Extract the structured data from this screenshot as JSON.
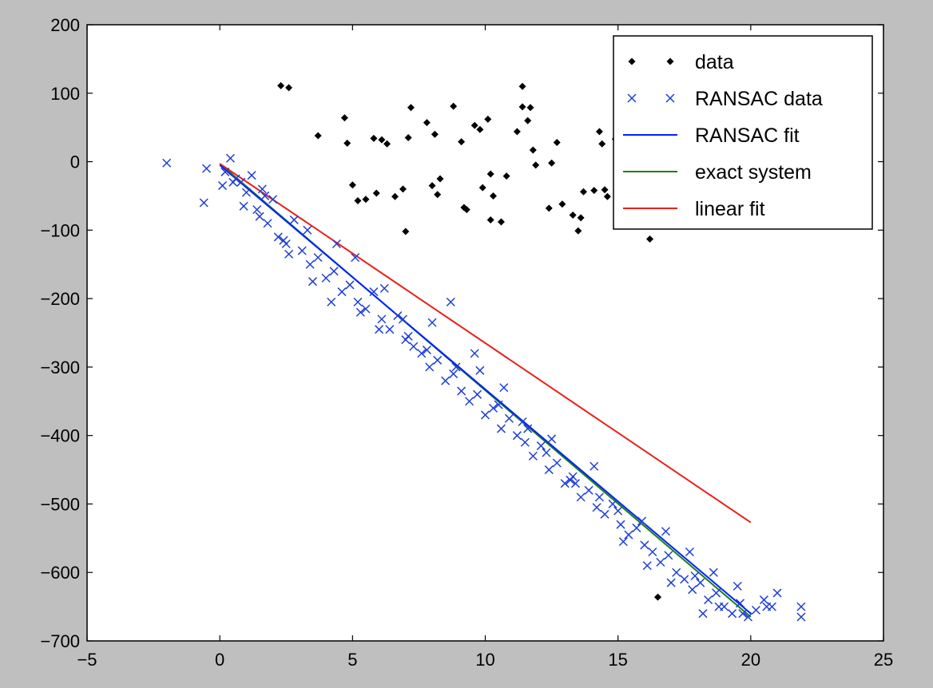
{
  "chart_data": {
    "type": "scatter",
    "title": "",
    "xlabel": "",
    "ylabel": "",
    "xlim": [
      -5,
      25
    ],
    "ylim": [
      -700,
      200
    ],
    "xticks": [
      -5,
      0,
      5,
      10,
      15,
      20,
      25
    ],
    "yticks": [
      -700,
      -600,
      -500,
      -400,
      -300,
      -200,
      -100,
      0,
      100,
      200
    ],
    "xtick_labels": [
      "−5",
      "0",
      "5",
      "10",
      "15",
      "20",
      "25"
    ],
    "ytick_labels": [
      "−700",
      "−600",
      "−500",
      "−400",
      "−300",
      "−200",
      "−100",
      "0",
      "100",
      "200"
    ],
    "grid": false,
    "legend_position": "top-right",
    "series": [
      {
        "name": "data",
        "kind": "points",
        "marker": "diamond",
        "color": "#000000",
        "x": [
          2.3,
          2.6,
          3.7,
          4.7,
          4.8,
          5.0,
          5.2,
          5.5,
          5.8,
          5.9,
          6.1,
          6.3,
          6.6,
          6.9,
          7.1,
          7.2,
          7.0,
          7.8,
          8.0,
          8.1,
          8.2,
          8.3,
          8.8,
          9.1,
          9.2,
          9.6,
          9.8,
          9.9,
          10.1,
          10.2,
          10.3,
          10.6,
          10.8,
          11.2,
          11.4,
          11.6,
          11.7,
          11.8,
          11.9,
          12.4,
          12.5,
          12.7,
          12.9,
          13.3,
          13.5,
          13.6,
          13.7,
          14.1,
          14.3,
          14.4,
          14.5,
          14.9,
          15.5,
          15.8,
          16.2,
          16.5,
          14.6,
          11.4,
          10.2,
          9.3
        ],
        "y": [
          111,
          108,
          38,
          64,
          27,
          -34,
          -57,
          -55,
          34,
          -46,
          32,
          26,
          -51,
          -40,
          35,
          79,
          -102,
          57,
          -35,
          40,
          -48,
          -25,
          81,
          29,
          -67,
          53,
          47,
          -38,
          62,
          -85,
          -50,
          -88,
          -21,
          44,
          110,
          60,
          79,
          17,
          -5,
          -68,
          -2,
          28,
          -62,
          -78,
          -101,
          -82,
          -44,
          -42,
          44,
          26,
          -41,
          33,
          45,
          -15,
          -113,
          -636,
          -51,
          80,
          -18,
          -70
        ]
      },
      {
        "name": "RANSAC data",
        "kind": "points",
        "marker": "x",
        "color": "#1f3fd6",
        "x": [
          -2.0,
          -0.6,
          -0.5,
          0.2,
          0.4,
          0.6,
          0.8,
          1.0,
          1.2,
          1.4,
          1.6,
          1.8,
          2.0,
          2.2,
          2.5,
          2.8,
          3.1,
          3.4,
          3.7,
          4.0,
          4.3,
          4.6,
          4.9,
          5.2,
          5.5,
          5.8,
          6.1,
          6.4,
          6.7,
          7.0,
          7.3,
          7.6,
          7.9,
          8.2,
          8.5,
          8.8,
          9.1,
          9.4,
          9.7,
          10.0,
          10.3,
          10.6,
          10.9,
          11.2,
          11.5,
          11.8,
          12.1,
          12.4,
          12.7,
          13.0,
          13.3,
          13.6,
          13.9,
          14.2,
          14.5,
          14.8,
          15.1,
          15.4,
          15.7,
          16.0,
          16.3,
          16.6,
          16.9,
          17.2,
          17.5,
          17.8,
          18.1,
          18.4,
          18.7,
          19.0,
          19.3,
          19.6,
          19.9,
          20.2,
          20.5,
          20.8,
          21.9,
          0.1,
          0.9,
          1.7,
          2.6,
          3.5,
          4.4,
          5.3,
          6.2,
          7.1,
          8.0,
          8.9,
          9.8,
          10.7,
          11.6,
          12.5,
          13.4,
          14.3,
          15.2,
          16.1,
          17.0,
          17.9,
          18.8,
          19.7,
          20.6,
          0.5,
          1.5,
          2.4,
          3.3,
          4.2,
          5.1,
          6.0,
          6.9,
          7.8,
          8.7,
          9.6,
          10.5,
          11.4,
          12.3,
          13.2,
          14.1,
          15.0,
          15.9,
          16.8,
          17.7,
          18.6,
          19.5,
          21.0,
          18.2,
          21.9
        ],
        "y": [
          -2,
          -60,
          -10,
          -15,
          5,
          -25,
          -30,
          -45,
          -20,
          -70,
          -40,
          -90,
          -55,
          -110,
          -120,
          -85,
          -130,
          -150,
          -140,
          -170,
          -160,
          -190,
          -180,
          -205,
          -215,
          -190,
          -230,
          -245,
          -225,
          -260,
          -270,
          -280,
          -300,
          -290,
          -320,
          -310,
          -335,
          -350,
          -340,
          -370,
          -360,
          -390,
          -375,
          -400,
          -410,
          -430,
          -415,
          -450,
          -440,
          -470,
          -460,
          -490,
          -480,
          -505,
          -515,
          -500,
          -530,
          -545,
          -535,
          -560,
          -570,
          -585,
          -575,
          -600,
          -610,
          -625,
          -615,
          -640,
          -630,
          -650,
          -660,
          -645,
          -665,
          -655,
          -640,
          -650,
          -665,
          -35,
          -65,
          -50,
          -135,
          -175,
          -120,
          -220,
          -185,
          -255,
          -235,
          -300,
          -305,
          -330,
          -390,
          -405,
          -470,
          -490,
          -555,
          -590,
          -615,
          -605,
          -650,
          -660,
          -650,
          -30,
          -80,
          -115,
          -100,
          -205,
          -140,
          -245,
          -230,
          -275,
          -205,
          -280,
          -355,
          -380,
          -425,
          -465,
          -445,
          -510,
          -525,
          -540,
          -570,
          -600,
          -620,
          -630,
          -660,
          -650
        ]
      },
      {
        "name": "RANSAC fit",
        "kind": "line",
        "color": "#0022ff",
        "x": [
          0,
          20
        ],
        "y": [
          -5,
          -660
        ]
      },
      {
        "name": "exact system",
        "kind": "line",
        "color": "#1a7f1a",
        "x": [
          0,
          20
        ],
        "y": [
          -3,
          -665
        ]
      },
      {
        "name": "linear fit",
        "kind": "line",
        "color": "#e8201a",
        "x": [
          0,
          20
        ],
        "y": [
          -3,
          -527
        ]
      }
    ]
  }
}
